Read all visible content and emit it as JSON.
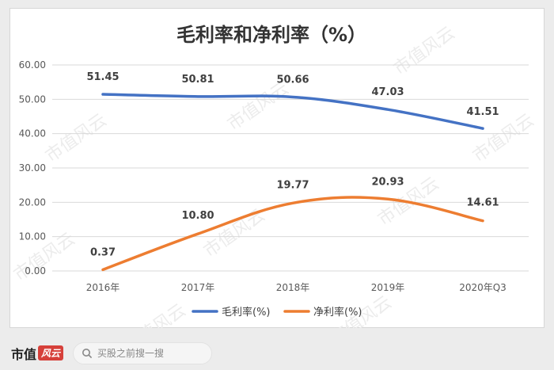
{
  "chart_data": {
    "type": "line",
    "title": "毛利率和净利率（%）",
    "categories": [
      "2016年",
      "2017年",
      "2018年",
      "2019年",
      "2020年Q3"
    ],
    "series": [
      {
        "name": "毛利率(%)",
        "values": [
          51.45,
          50.81,
          50.66,
          47.03,
          41.51
        ],
        "labels": [
          "51.45",
          "50.81",
          "50.66",
          "47.03",
          "41.51"
        ],
        "color": "#4472c4"
      },
      {
        "name": "净利率(%)",
        "values": [
          0.37,
          10.8,
          19.77,
          20.93,
          14.61
        ],
        "labels": [
          "0.37",
          "10.80",
          "19.77",
          "20.93",
          "14.61"
        ],
        "color": "#ed7d31"
      }
    ],
    "ylim": [
      0,
      60
    ],
    "yticks": [
      "0.00",
      "10.00",
      "20.00",
      "30.00",
      "40.00",
      "50.00",
      "60.00"
    ],
    "grid": true,
    "legend": "bottom"
  },
  "watermark": "市值风云",
  "footer": {
    "brand": "市值",
    "brand_mark": "风云",
    "search_placeholder": "买股之前搜一搜"
  }
}
